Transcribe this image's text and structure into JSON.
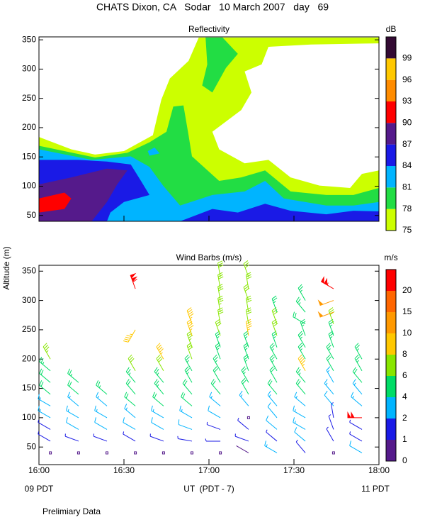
{
  "title": "CHATS Dixon, CA   Sodar   10 March 2007   day   69",
  "y_label": "Altitude (m)",
  "x_label": "UT  (PDT - 7)",
  "x_start_label": "09 PDT",
  "x_end_label": "11 PDT",
  "note": "Prelimiary Data",
  "chart_data": [
    {
      "type": "contour",
      "title": "Reflectivity",
      "xlim": [
        16,
        18
      ],
      "xticks": [
        16,
        16.5,
        17,
        17.5,
        18
      ],
      "ylim": [
        40,
        355
      ],
      "yticks": [
        50,
        100,
        150,
        200,
        250,
        300,
        350
      ],
      "colorbar": {
        "label": "dB",
        "ticks": [
          75,
          78,
          81,
          84,
          87,
          90,
          93,
          96,
          99
        ],
        "colors": [
          "#ccff00",
          "#22dd44",
          "#00b4ff",
          "#1a1ae6",
          "#551a8b",
          "#ff0000",
          "#ff8c00",
          "#ffc800",
          "#330a33"
        ]
      },
      "regions": [
        {
          "level": 75,
          "polygons": [
            {
              "x": [
                16,
                16,
                16.19,
                16.33,
                16.5,
                16.67,
                16.72,
                16.77,
                16.88,
                16.94,
                18,
                18,
                17.6,
                17.35,
                17.31,
                17.21,
                17.25,
                17.19,
                17.02,
                17.06,
                17.21,
                17.35,
                17.48,
                17.65,
                17.83,
                17.9,
                18,
                18
              ],
              "y": [
                40,
                184,
                163,
                154,
                160,
                187,
                248,
                284,
                314,
                354,
                354,
                344,
                342,
                338,
                308,
                296,
                260,
                230,
                193,
                163,
                139,
                145,
                115,
                101,
                97,
                121,
                127,
                40
              ]
            }
          ]
        },
        {
          "level": 78,
          "polygons": [
            {
              "x": [
                16,
                16,
                16.33,
                16.52,
                16.65,
                16.75,
                16.79,
                16.85,
                16.88,
                16.9,
                17.06,
                17.19,
                17.33,
                17.48,
                17.69,
                17.85,
                18,
                18
              ],
              "y": [
                40,
                169,
                149,
                157,
                175,
                193,
                236,
                238,
                187,
                151,
                109,
                115,
                127,
                91,
                85,
                85,
                97,
                40
              ]
            },
            {
              "x": [
                16.98,
                17.08,
                17.17,
                17.1,
                17.02,
                16.96,
                16.99
              ],
              "y": [
                354,
                354,
                326,
                302,
                260,
                272,
                308
              ]
            }
          ]
        },
        {
          "level": 81,
          "polygons": [
            {
              "x": [
                16,
                16,
                16.31,
                16.54,
                16.65,
                16.73,
                16.83,
                17.02,
                17.21,
                17.33,
                17.44,
                17.69,
                17.85,
                18,
                18
              ],
              "y": [
                40,
                163,
                145,
                151,
                133,
                101,
                67,
                85,
                91,
                109,
                79,
                67,
                67,
                73,
                40
              ]
            },
            {
              "x": [
                16.64,
                16.68,
                16.71,
                16.65
              ],
              "y": [
                160,
                166,
                156,
                152
              ]
            }
          ]
        },
        {
          "level": 84,
          "polygons": [
            {
              "x": [
                16,
                16,
                16.23,
                16.4,
                16.54,
                16.6,
                16.65,
                16.5,
                16.42,
                16.4
              ],
              "y": [
                40,
                145,
                145,
                142,
                137,
                109,
                85,
                73,
                55,
                40
              ]
            },
            {
              "x": [
                16.83,
                17.02,
                17.17,
                17.33,
                17.48,
                17.69,
                17.85,
                18,
                18
              ],
              "y": [
                40,
                61,
                55,
                70,
                58,
                52,
                58,
                57,
                40
              ]
            }
          ]
        },
        {
          "level": 87,
          "polygons": [
            {
              "x": [
                16,
                16,
                16.19,
                16.4,
                16.52,
                16.46,
                16.4,
                16.31
              ],
              "y": [
                40,
                103,
                115,
                130,
                127,
                103,
                73,
                40
              ]
            }
          ]
        },
        {
          "level": 90,
          "polygons": [
            {
              "x": [
                16,
                16.15,
                16.19,
                16.15,
                16
              ],
              "y": [
                79,
                89,
                79,
                61,
                55
              ]
            }
          ]
        }
      ]
    },
    {
      "type": "barbs",
      "title": "Wind Barbs (m/s)",
      "xlim": [
        16,
        18
      ],
      "xticks": [
        {
          "value": 16,
          "label": "16:00"
        },
        {
          "value": 16.5,
          "label": "16:30"
        },
        {
          "value": 17,
          "label": "17:00"
        },
        {
          "value": 17.5,
          "label": "17:30"
        },
        {
          "value": 18,
          "label": "18:00"
        }
      ],
      "ylim": [
        20,
        360
      ],
      "yticks": [
        50,
        100,
        150,
        200,
        250,
        300,
        350
      ],
      "colorbar": {
        "label": "m/s",
        "ticks": [
          0,
          1,
          2,
          4,
          6,
          8,
          10,
          15,
          20
        ],
        "colors": [
          "#551a8b",
          "#1a1ae6",
          "#00b4ff",
          "#00dc66",
          "#88e600",
          "#ffc800",
          "#ff9900",
          "#ff6600",
          "#ff0000"
        ]
      },
      "columns": [
        {
          "time": 16.067,
          "height": [
            40,
            60,
            80,
            100,
            120,
            140,
            160,
            180,
            200
          ],
          "speed": [
            0,
            1.5,
            1.5,
            3,
            3,
            4,
            4,
            5,
            7
          ],
          "direction": [
            0,
            300,
            300,
            300,
            300,
            310,
            310,
            310,
            330
          ]
        },
        {
          "time": 16.233,
          "height": [
            40,
            60,
            80,
            100,
            120,
            140,
            160
          ],
          "speed": [
            0,
            1.5,
            2.5,
            3,
            3.5,
            4.5,
            5.5
          ],
          "direction": [
            0,
            290,
            300,
            300,
            310,
            310,
            310
          ]
        },
        {
          "time": 16.4,
          "height": [
            40,
            60,
            80,
            100,
            120,
            140
          ],
          "speed": [
            0,
            1.5,
            2.5,
            3,
            3.5,
            5
          ],
          "direction": [
            0,
            290,
            300,
            300,
            310,
            310
          ]
        },
        {
          "time": 16.567,
          "height": [
            40,
            60,
            80,
            100,
            120,
            140,
            160,
            180,
            250,
            320
          ],
          "speed": [
            0,
            1,
            2.5,
            3,
            4,
            4.5,
            5,
            6,
            9,
            22
          ],
          "direction": [
            0,
            300,
            300,
            310,
            310,
            320,
            320,
            330,
            210,
            340
          ]
        },
        {
          "time": 16.733,
          "height": [
            40,
            60,
            80,
            100,
            120,
            140,
            160,
            180,
            200
          ],
          "speed": [
            0,
            1.5,
            2.5,
            3,
            4,
            5,
            5,
            6,
            9
          ],
          "direction": [
            0,
            290,
            300,
            300,
            310,
            320,
            320,
            330,
            330
          ]
        },
        {
          "time": 16.9,
          "height": [
            40,
            60,
            80,
            100,
            120,
            140,
            160,
            180,
            200,
            220,
            240,
            260
          ],
          "speed": [
            0,
            1.5,
            2.5,
            3,
            4,
            4.5,
            5,
            5.5,
            6,
            7,
            9,
            9
          ],
          "direction": [
            0,
            280,
            290,
            300,
            310,
            320,
            330,
            330,
            340,
            340,
            340,
            340
          ]
        },
        {
          "time": 17.067,
          "height": [
            40,
            60,
            80,
            100,
            120,
            140,
            160,
            180,
            200,
            220,
            240,
            260,
            280,
            300,
            320,
            340
          ],
          "speed": [
            0,
            1.5,
            1,
            2.5,
            3,
            4,
            4.5,
            5,
            5,
            5.5,
            6,
            6,
            7,
            6.5,
            6,
            6
          ],
          "direction": [
            0,
            270,
            290,
            300,
            310,
            320,
            330,
            330,
            340,
            340,
            340,
            350,
            350,
            350,
            350,
            350
          ]
        },
        {
          "time": 17.233,
          "height": [
            40,
            60,
            80,
            100,
            120,
            140,
            160,
            180,
            200,
            220,
            240,
            260,
            280,
            300,
            320,
            340
          ],
          "speed": [
            0.5,
            1.5,
            1,
            0,
            3,
            4,
            5,
            5,
            5.5,
            5,
            9,
            6,
            6,
            6,
            6,
            6
          ],
          "direction": [
            300,
            290,
            310,
            0,
            320,
            330,
            330,
            340,
            340,
            340,
            350,
            350,
            350,
            340,
            350,
            340
          ]
        },
        {
          "time": 17.4,
          "height": [
            40,
            60,
            80,
            100,
            120,
            140,
            160,
            180,
            200,
            220,
            240,
            260,
            280
          ],
          "speed": [
            3,
            1.5,
            2,
            2.5,
            3,
            4,
            4.5,
            5,
            5,
            5.5,
            6,
            6,
            5.5
          ],
          "direction": [
            300,
            310,
            310,
            320,
            320,
            320,
            330,
            330,
            330,
            340,
            340,
            340,
            340
          ]
        },
        {
          "time": 17.567,
          "height": [
            40,
            60,
            80,
            100,
            120,
            140,
            160,
            180,
            200,
            220,
            240,
            260,
            280,
            300
          ],
          "speed": [
            1,
            2,
            3,
            3,
            3.5,
            4,
            5,
            9,
            5,
            5.5,
            5.5,
            4,
            5,
            5
          ],
          "direction": [
            320,
            310,
            300,
            300,
            310,
            320,
            320,
            330,
            330,
            330,
            340,
            300,
            320,
            330
          ]
        },
        {
          "time": 17.733,
          "height": [
            40,
            60,
            80,
            100,
            120,
            140,
            160,
            180,
            200,
            220,
            240,
            260,
            280,
            300,
            320
          ],
          "speed": [
            0,
            1,
            1.5,
            1.5,
            2.5,
            3,
            3.5,
            4,
            5,
            5,
            5,
            6,
            10,
            10,
            21
          ],
          "direction": [
            0,
            330,
            340,
            350,
            320,
            320,
            330,
            330,
            330,
            340,
            340,
            340,
            250,
            250,
            300
          ]
        },
        {
          "time": 17.9,
          "height": [
            40,
            60,
            80,
            100,
            120,
            140,
            160,
            180,
            200
          ],
          "speed": [
            2.5,
            1,
            1.5,
            20,
            3,
            3.5,
            4,
            5,
            5.5
          ],
          "direction": [
            300,
            300,
            300,
            270,
            310,
            320,
            320,
            330,
            330
          ]
        }
      ]
    }
  ]
}
